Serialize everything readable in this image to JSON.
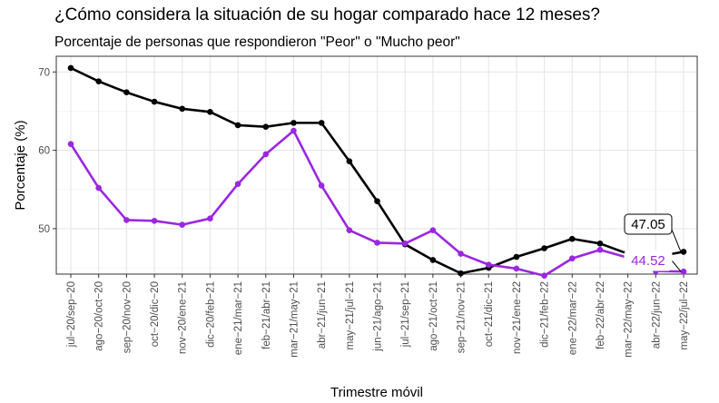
{
  "chart_data": {
    "type": "line",
    "title": "¿Cómo considera la situación de su hogar comparado hace 12 meses?",
    "subtitle": "Porcentaje de personas que respondieron \"Peor\" o \"Mucho peor\"",
    "xlabel": "Trimestre móvil",
    "ylabel": "Porcentaje (%)",
    "ylim": [
      44.2,
      72.0
    ],
    "yticks": [
      50,
      60,
      70
    ],
    "grid": true,
    "categories": [
      "jul−20/sep−20",
      "ago−20/oct−20",
      "sep−20/nov−20",
      "oct−20/dic−20",
      "nov−20/ene−21",
      "dic−20/feb−21",
      "ene−21/mar−21",
      "feb−21/abr−21",
      "mar−21/may−21",
      "abr−21/jun−21",
      "may−21/jul−21",
      "jun−21/ago−21",
      "jul−21/sep−21",
      "ago−21/oct−21",
      "sep−21/nov−21",
      "oct−21/dic−21",
      "nov−21/ene−22",
      "dic−21/feb−22",
      "ene−22/mar−22",
      "feb−22/abr−22",
      "mar−22/may−22",
      "abr−22/jun−22",
      "may−22/jul−22"
    ],
    "series": [
      {
        "color": "#000000",
        "values": [
          70.5,
          68.8,
          67.4,
          66.2,
          65.3,
          64.9,
          63.2,
          63.0,
          63.5,
          63.5,
          58.6,
          53.5,
          48.0,
          46.0,
          44.3,
          45.0,
          46.4,
          47.5,
          48.7,
          48.1,
          46.8,
          46.4,
          47.05
        ],
        "end_label": "47.05"
      },
      {
        "color": "#9b27e0",
        "values": [
          60.8,
          55.2,
          51.1,
          51.0,
          50.5,
          51.3,
          55.7,
          59.5,
          62.5,
          55.5,
          49.8,
          48.2,
          48.1,
          49.8,
          46.8,
          45.4,
          44.9,
          44.0,
          46.2,
          47.3,
          46.3,
          44.6,
          44.52
        ],
        "end_label": "44.52"
      }
    ]
  }
}
